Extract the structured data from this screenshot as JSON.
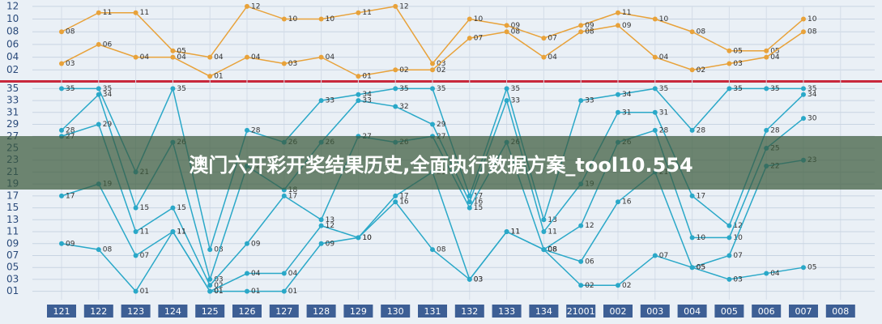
{
  "overlay_title": "澳门六开彩开奖结果历史,全面执行数据方案_tool10.554",
  "chart_data": [
    {
      "type": "line",
      "ylim": [
        0,
        13
      ],
      "yticks": [
        {
          "value": 2,
          "label": "02"
        },
        {
          "value": 4,
          "label": "04"
        },
        {
          "value": 6,
          "label": "06"
        },
        {
          "value": 8,
          "label": "08"
        },
        {
          "value": 10,
          "label": "10"
        },
        {
          "value": 12,
          "label": "12"
        }
      ],
      "series": [
        {
          "color": "#e8a23a",
          "values": [
            8,
            11,
            11,
            5,
            4,
            12,
            10,
            10,
            11,
            12,
            3,
            10,
            9,
            7,
            9,
            11,
            10,
            8,
            5,
            5,
            10,
            null
          ],
          "value_labels": [
            "08",
            "11",
            "11",
            "05",
            "04",
            "12",
            "10",
            "10",
            "11",
            "12",
            "03",
            "10",
            "09",
            "07",
            "09",
            "11",
            "10",
            "08",
            "05",
            "05",
            "10",
            null
          ]
        },
        {
          "color": "#e8a23a",
          "values": [
            3,
            6,
            4,
            4,
            1,
            4,
            3,
            4,
            1,
            2,
            2,
            7,
            8,
            4,
            8,
            9,
            4,
            2,
            3,
            4,
            8,
            null
          ],
          "value_labels": [
            "03",
            "06",
            "04",
            "04",
            "01",
            "04",
            "03",
            "04",
            "01",
            "02",
            "02",
            "07",
            "08",
            "04",
            "08",
            "09",
            "04",
            "02",
            "03",
            "04",
            "08",
            null
          ]
        }
      ]
    },
    {
      "type": "line",
      "ylim": [
        0,
        36
      ],
      "categories": [
        "121",
        "122",
        "123",
        "124",
        "125",
        "126",
        "127",
        "128",
        "129",
        "130",
        "131",
        "132",
        "133",
        "134",
        "21001",
        "002",
        "003",
        "004",
        "005",
        "006",
        "007",
        "008"
      ],
      "yticks": [
        {
          "value": 1,
          "label": "01"
        },
        {
          "value": 3,
          "label": "03"
        },
        {
          "value": 5,
          "label": "05"
        },
        {
          "value": 7,
          "label": "07"
        },
        {
          "value": 9,
          "label": "09"
        },
        11,
        13,
        15,
        17,
        19,
        21,
        23,
        25,
        27,
        29,
        31,
        33,
        35
      ],
      "series": [
        {
          "color": "#2aa8c8",
          "values": [
            35,
            35,
            21,
            35,
            8,
            28,
            26,
            33,
            34,
            35,
            35,
            17,
            35,
            13,
            33,
            34,
            35,
            28,
            35,
            35,
            35,
            null
          ],
          "value_labels": [
            "35",
            "35",
            "21",
            "35",
            "08",
            "28",
            "26",
            "33",
            "34",
            "35",
            "35",
            "17",
            "35",
            "13",
            "33",
            "34",
            "35",
            "28",
            "35",
            "35",
            "35",
            null
          ]
        },
        {
          "color": "#2aa8c8",
          "values": [
            28,
            34,
            15,
            26,
            3,
            22,
            18,
            26,
            33,
            32,
            29,
            16,
            33,
            11,
            19,
            31,
            31,
            17,
            12,
            28,
            34,
            null
          ],
          "value_labels": [
            "28",
            "34",
            "15",
            "26",
            "03",
            "22",
            "18",
            "26",
            "33",
            "32",
            "29",
            "16",
            "33",
            "11",
            "19",
            "31",
            "31",
            "17",
            "12",
            "28",
            "34",
            null
          ]
        },
        {
          "color": "#2aa8c8",
          "values": [
            27,
            29,
            11,
            15,
            2,
            9,
            17,
            13,
            27,
            26,
            27,
            15,
            26,
            8,
            12,
            26,
            28,
            10,
            10,
            25,
            30,
            null
          ],
          "value_labels": [
            "27",
            "29",
            "11",
            "15",
            "02",
            "09",
            "17",
            "13",
            "27",
            "26",
            "27",
            "15",
            "26",
            "08",
            "12",
            "26",
            "28",
            "10",
            "10",
            "25",
            "30",
            null
          ]
        },
        {
          "color": "#2aa8c8",
          "values": [
            17,
            19,
            7,
            11,
            1,
            4,
            4,
            12,
            10,
            17,
            21,
            3,
            11,
            8,
            6,
            16,
            21,
            5,
            7,
            22,
            23,
            null
          ],
          "value_labels": [
            "17",
            "19",
            "07",
            "11",
            "01",
            "04",
            "04",
            "12",
            "10",
            "17",
            "21",
            "03",
            "11",
            "08",
            "06",
            "16",
            "21",
            "05",
            "07",
            "22",
            "23",
            null
          ]
        },
        {
          "color": "#2aa8c8",
          "values": [
            9,
            8,
            1,
            11,
            1,
            1,
            1,
            9,
            10,
            16,
            8,
            3,
            11,
            8,
            2,
            2,
            7,
            5,
            3,
            4,
            5,
            null
          ],
          "value_labels": [
            "09",
            "08",
            "01",
            "11",
            "01",
            "01",
            "01",
            "09",
            "10",
            "16",
            "08",
            "03",
            "11",
            "08",
            "02",
            "02",
            "07",
            "05",
            "03",
            "04",
            "05",
            null
          ]
        }
      ]
    }
  ]
}
